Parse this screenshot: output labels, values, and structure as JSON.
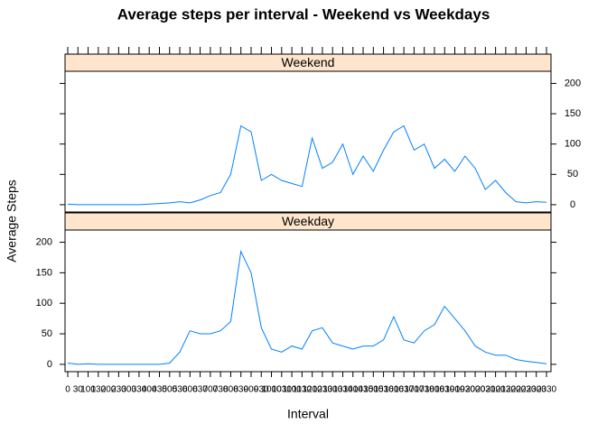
{
  "chart_data": {
    "type": "line",
    "title": "Average steps per interval - Weekend vs Weekdays",
    "x_label": "Interval",
    "y_label": "Average Steps",
    "categories": [
      "0",
      "30",
      "100",
      "130",
      "200",
      "230",
      "300",
      "330",
      "400",
      "430",
      "500",
      "530",
      "600",
      "630",
      "700",
      "730",
      "800",
      "830",
      "900",
      "930",
      "1000",
      "1030",
      "1100",
      "1130",
      "1200",
      "1230",
      "1300",
      "1330",
      "1400",
      "1430",
      "1500",
      "1530",
      "1600",
      "1630",
      "1700",
      "1730",
      "1800",
      "1830",
      "1900",
      "1930",
      "2000",
      "2030",
      "2100",
      "2130",
      "2200",
      "2230",
      "2300",
      "2330"
    ],
    "series": [
      {
        "name": "Weekend",
        "color": "#0080ff",
        "values": [
          1,
          0,
          0,
          0,
          0,
          0,
          0,
          0,
          1,
          2,
          3,
          5,
          3,
          8,
          15,
          20,
          50,
          130,
          120,
          40,
          50,
          40,
          35,
          30,
          110,
          60,
          70,
          100,
          50,
          80,
          55,
          90,
          120,
          130,
          90,
          100,
          60,
          75,
          55,
          80,
          60,
          25,
          40,
          20,
          5,
          3,
          5,
          4
        ]
      },
      {
        "name": "Weekday",
        "color": "#0080ff",
        "values": [
          2,
          0,
          1,
          0,
          0,
          0,
          0,
          0,
          0,
          0,
          2,
          20,
          55,
          50,
          50,
          55,
          70,
          185,
          150,
          60,
          25,
          20,
          30,
          25,
          55,
          60,
          35,
          30,
          25,
          30,
          30,
          40,
          78,
          40,
          35,
          55,
          65,
          95,
          75,
          55,
          30,
          20,
          15,
          15,
          8,
          5,
          3,
          1
        ]
      }
    ],
    "ylim": [
      -12,
      220
    ],
    "yticks": [
      0,
      50,
      100,
      150,
      200
    ],
    "strip_color": "#ffe5cc"
  }
}
